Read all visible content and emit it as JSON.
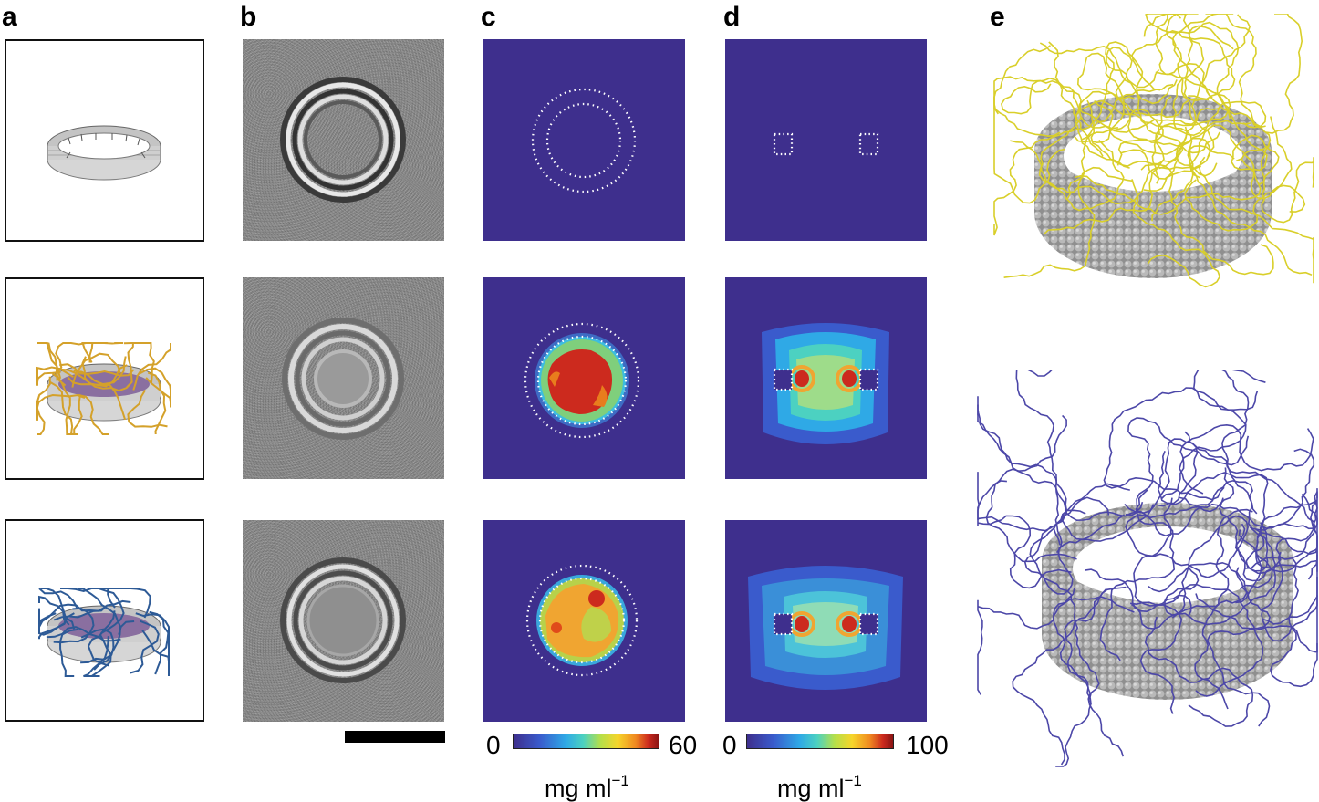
{
  "panels": {
    "a": {
      "letter": "a"
    },
    "b": {
      "letter": "b"
    },
    "c": {
      "letter": "c"
    },
    "d": {
      "letter": "d"
    },
    "e": {
      "letter": "e"
    }
  },
  "colorbars": {
    "c": {
      "min": "0",
      "max": "60",
      "unit_main": "mg ml",
      "unit_exp": "−1"
    },
    "d": {
      "min": "0",
      "max": "100",
      "unit_main": "mg ml",
      "unit_exp": "−1"
    }
  },
  "colors": {
    "background_heatmap": "#3e2f8d",
    "yellow_polymer": "#d9cf2a",
    "blue_polymer": "#4c47a8",
    "gold_strands": "#d4a12a",
    "navy_strands": "#2d5a96",
    "ring_gray": "#a9a9a9"
  },
  "icons": [
    "scale-bar",
    "dna-origami-ring",
    "polymer-brush"
  ]
}
